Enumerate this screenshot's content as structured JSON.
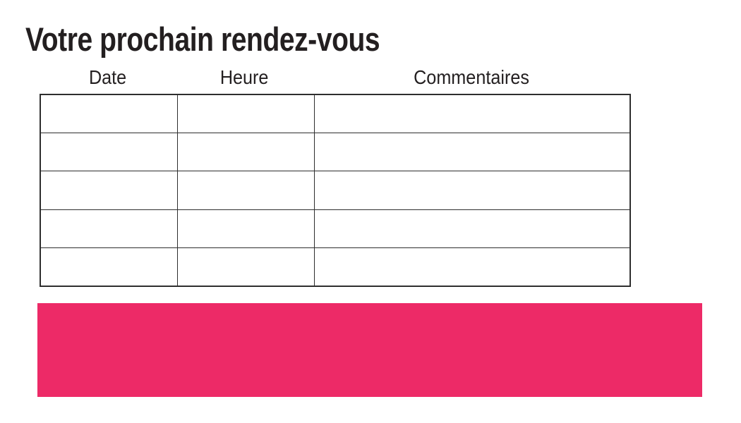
{
  "page": {
    "title": "Votre prochain rendez-vous",
    "background": "#ffffff"
  },
  "table": {
    "headers": [
      "Date",
      "Heure",
      "Commentaires"
    ],
    "row_count": 5,
    "rows": [
      [
        "",
        "",
        ""
      ],
      [
        "",
        "",
        ""
      ],
      [
        "",
        "",
        ""
      ],
      [
        "",
        "",
        ""
      ],
      [
        "",
        "",
        ""
      ]
    ]
  },
  "colors": {
    "accent_pink": "#ED2A67",
    "text_black": "#231F20",
    "table_border": "#2E2E2E"
  }
}
